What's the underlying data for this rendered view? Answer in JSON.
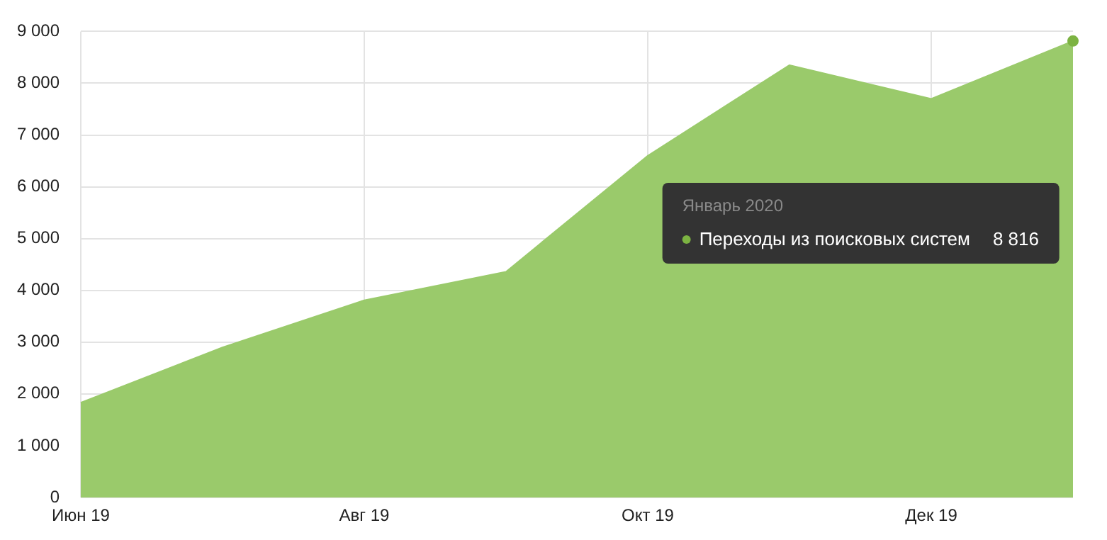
{
  "chart_data": {
    "type": "area",
    "categories": [
      "Июн 19",
      null,
      "Авг 19",
      null,
      "Окт 19",
      null,
      "Дек 19",
      null
    ],
    "series": [
      {
        "name": "Переходы из поисковых систем",
        "color": "#9aca6b",
        "values": [
          1830,
          2900,
          3810,
          4360,
          6600,
          8350,
          7700,
          8816
        ]
      }
    ],
    "ylim": [
      0,
      9000
    ],
    "yticks": [
      0,
      {
        "value": 1000,
        "label": "1 000"
      },
      {
        "value": 2000,
        "label": "2 000"
      },
      {
        "value": 3000,
        "label": "3 000"
      },
      {
        "value": 4000,
        "label": "4 000"
      },
      {
        "value": 5000,
        "label": "5 000"
      },
      {
        "value": 6000,
        "label": "6 000"
      },
      {
        "value": 7000,
        "label": "7 000"
      },
      {
        "value": 8000,
        "label": "8 000"
      },
      {
        "value": 9000,
        "label": "9 000"
      }
    ],
    "grid": true,
    "annotations": [
      "Январь 2020",
      "8 816"
    ]
  }
}
